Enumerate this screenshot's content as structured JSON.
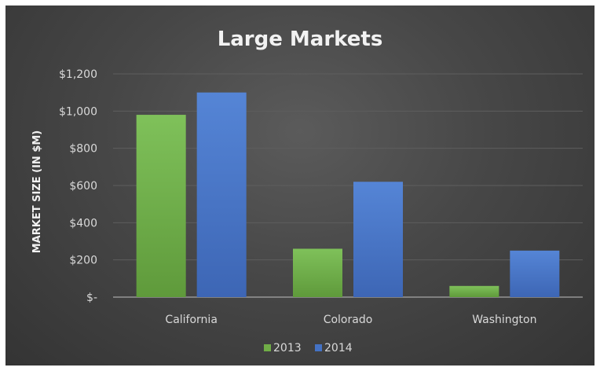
{
  "chart_data": {
    "type": "bar",
    "title": "Large Markets",
    "xlabel": "",
    "ylabel": "MARKET SIZE (IN $M)",
    "categories": [
      "California",
      "Colorado",
      "Washington"
    ],
    "series": [
      {
        "name": "2013",
        "values": [
          980,
          260,
          60
        ],
        "color": "#70ad47"
      },
      {
        "name": "2014",
        "values": [
          1100,
          620,
          250
        ],
        "color": "#4472c4"
      }
    ],
    "ylim": [
      0,
      1200
    ],
    "yticks": [
      0,
      200,
      400,
      600,
      800,
      1000,
      1200
    ],
    "ytick_labels": [
      "$-",
      "$200",
      "$400",
      "$600",
      "$800",
      "$1,000",
      "$1,200"
    ],
    "grid": true,
    "legend_position": "bottom",
    "background_color": "#454545"
  }
}
